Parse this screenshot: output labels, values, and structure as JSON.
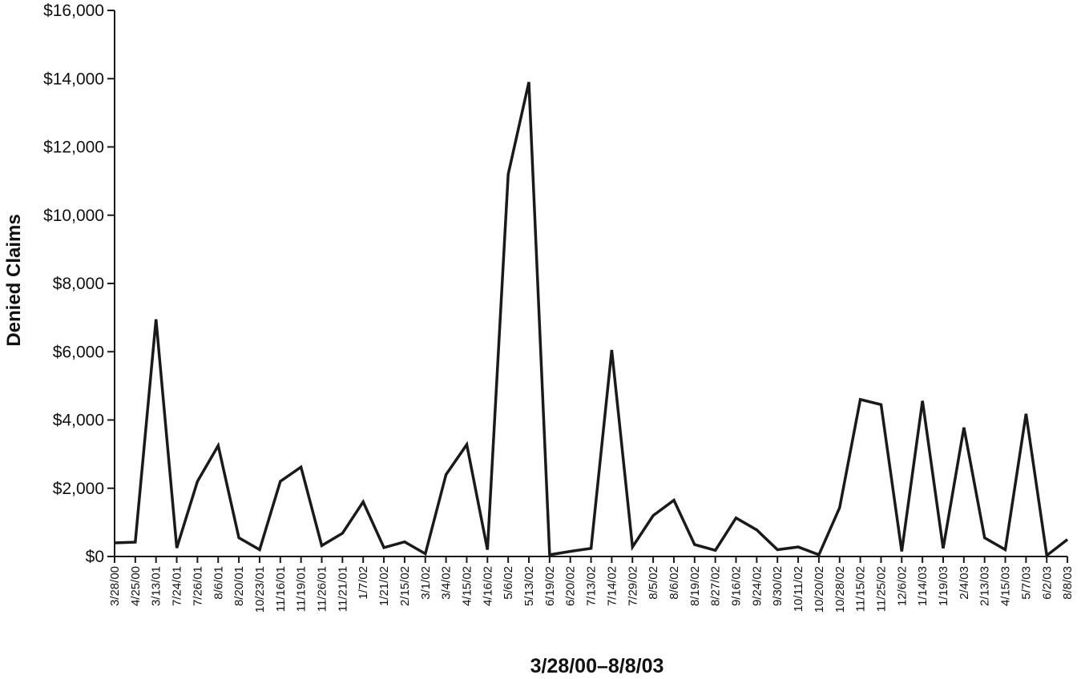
{
  "chart_data": {
    "type": "line",
    "title": "",
    "xlabel": "3/28/00–8/8/03",
    "ylabel": "Denied Claims",
    "ylim": [
      0,
      16000
    ],
    "y_ticks": [
      "$0",
      "$2,000",
      "$4,000",
      "$6,000",
      "$8,000",
      "$10,000",
      "$12,000",
      "$14,000",
      "$16,000"
    ],
    "grid": false,
    "legend": "none",
    "line_color": "#1a1a1a",
    "categories": [
      "3/28/00",
      "4/25/00",
      "3/13/01",
      "7/24/01",
      "7/26/01",
      "8/6/01",
      "8/20/01",
      "10/23/01",
      "11/16/01",
      "11/19/01",
      "11/26/01",
      "11/21/01",
      "1/7/02",
      "1/21/02",
      "2/15/02",
      "3/1/02",
      "3/4/02",
      "4/15/02",
      "4/16/02",
      "5/6/02",
      "5/13/02",
      "6/19/02",
      "6/20/02",
      "7/13/02",
      "7/14/02",
      "7/29/02",
      "8/5/02",
      "8/6/02",
      "8/19/02",
      "8/27/02",
      "9/16/02",
      "9/24/02",
      "9/30/02",
      "10/11/02",
      "10/20/02",
      "10/28/02",
      "11/15/02",
      "11/25/02",
      "12/6/02",
      "1/14/03",
      "1/19/03",
      "2/4/03",
      "2/13/03",
      "4/15/03",
      "5/7/03",
      "6/2/03",
      "8/8/03"
    ],
    "values": [
      400,
      420,
      6950,
      250,
      2200,
      3250,
      550,
      200,
      2200,
      2620,
      320,
      680,
      1600,
      260,
      430,
      80,
      2400,
      3280,
      200,
      11200,
      13900,
      50,
      150,
      240,
      6050,
      280,
      1200,
      1650,
      350,
      180,
      1130,
      780,
      200,
      280,
      50,
      1430,
      4600,
      4450,
      150,
      4560,
      240,
      3780,
      550,
      200,
      4180,
      30,
      500
    ]
  }
}
